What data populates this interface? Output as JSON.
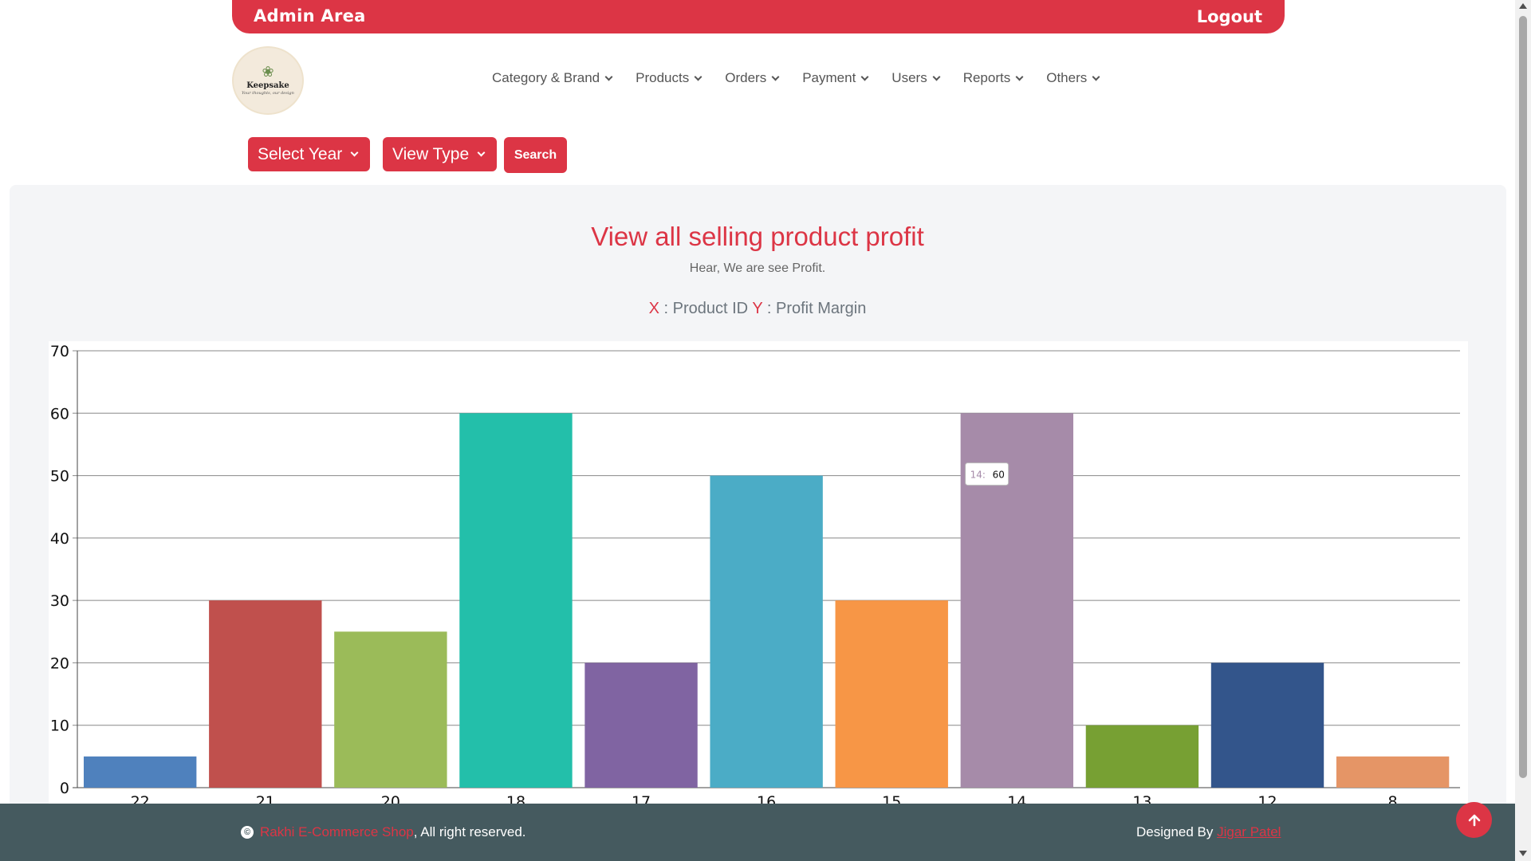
{
  "topbar": {
    "title": "Admin Area",
    "logout_label": "Logout"
  },
  "logo": {
    "text": "Keepsake",
    "subtext": "Your thoughts, our design"
  },
  "nav": {
    "items": [
      {
        "label": "Category & Brand"
      },
      {
        "label": "Products"
      },
      {
        "label": "Orders"
      },
      {
        "label": "Payment"
      },
      {
        "label": "Users"
      },
      {
        "label": "Reports"
      },
      {
        "label": "Others"
      }
    ]
  },
  "filters": {
    "select_year": "Select Year",
    "view_type": "View Type",
    "search": "Search"
  },
  "page": {
    "title": "View all selling product profit",
    "subtitle": "Hear, We are see Profit.",
    "x_key": "X",
    "x_label": "Product ID",
    "y_key": "Y",
    "y_label": "Profit Margin"
  },
  "chart_data": {
    "type": "bar",
    "categories": [
      "22",
      "21",
      "20",
      "18",
      "17",
      "16",
      "15",
      "14",
      "13",
      "12",
      "8"
    ],
    "values": [
      5,
      30,
      25,
      60,
      20,
      50,
      30,
      60,
      10,
      20,
      5
    ],
    "colors": [
      "#4f81bd",
      "#c0504d",
      "#9bbb59",
      "#23bfaa",
      "#8064a2",
      "#4bacc6",
      "#f79646",
      "#a68ba9",
      "#77a033",
      "#33558b",
      "#e59566"
    ],
    "ylim": [
      0,
      70
    ],
    "yticks": [
      0,
      10,
      20,
      30,
      40,
      50,
      60,
      70
    ],
    "grid": true,
    "tooltip": {
      "category": "14",
      "value": "60"
    }
  },
  "footer": {
    "shop_name": "Rakhi E-Commerce Shop",
    "rights": ", All right reserved.",
    "designed_by": "Designed By ",
    "designer": "Jigar Patel"
  },
  "scroll_top_icon": "arrow-up-icon"
}
